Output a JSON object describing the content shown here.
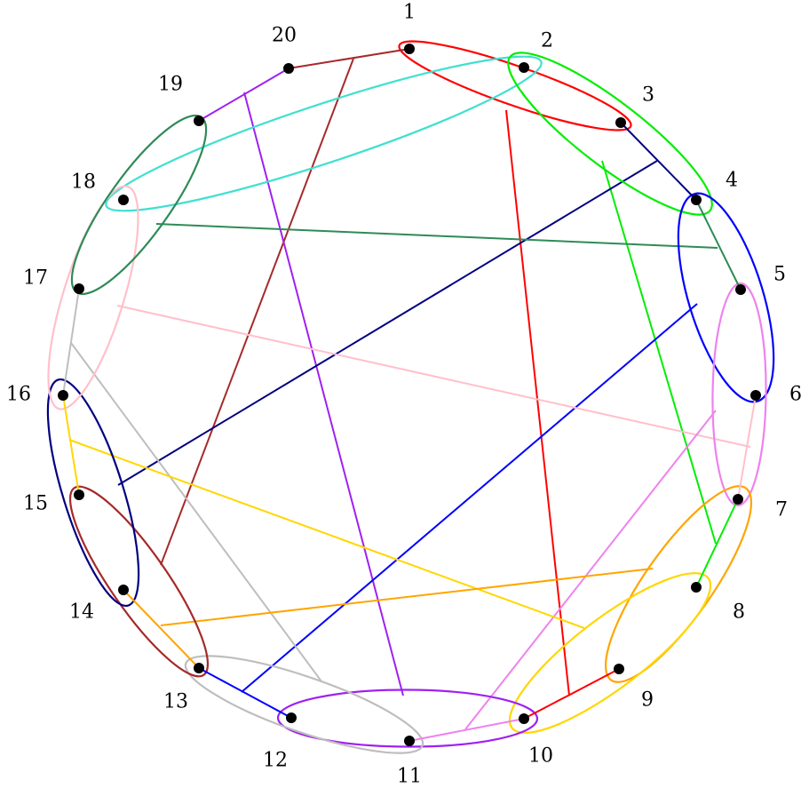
{
  "nodes": [
    {
      "id": 1,
      "label": "1"
    },
    {
      "id": 2,
      "label": "2"
    },
    {
      "id": 3,
      "label": "3"
    },
    {
      "id": 4,
      "label": "4"
    },
    {
      "id": 5,
      "label": "5"
    },
    {
      "id": 6,
      "label": "6"
    },
    {
      "id": 7,
      "label": "7"
    },
    {
      "id": 8,
      "label": "8"
    },
    {
      "id": 9,
      "label": "9"
    },
    {
      "id": 10,
      "label": "10"
    },
    {
      "id": 11,
      "label": "11"
    },
    {
      "id": 12,
      "label": "12"
    },
    {
      "id": 13,
      "label": "13"
    },
    {
      "id": 14,
      "label": "14"
    },
    {
      "id": 15,
      "label": "15"
    },
    {
      "id": 16,
      "label": "16"
    },
    {
      "id": 17,
      "label": "17"
    },
    {
      "id": 18,
      "label": "18"
    },
    {
      "id": 19,
      "label": "19"
    },
    {
      "id": 20,
      "label": "20"
    }
  ],
  "groups": [
    {
      "pair": [
        1,
        3
      ],
      "color": "#ff0000"
    },
    {
      "pair": [
        2,
        18
      ],
      "color": "#40e0d0"
    },
    {
      "pair": [
        2,
        4
      ],
      "color": "#00ee00"
    },
    {
      "pair": [
        4,
        6
      ],
      "color": "#0000ff"
    },
    {
      "pair": [
        5,
        7
      ],
      "color": "#ee82ee"
    },
    {
      "pair": [
        7,
        9
      ],
      "color": "#ffa500"
    },
    {
      "pair": [
        8,
        10
      ],
      "color": "#ffd700"
    },
    {
      "pair": [
        10,
        12
      ],
      "color": "#a020f0"
    },
    {
      "pair": [
        11,
        13
      ],
      "color": "#bebebe"
    },
    {
      "pair": [
        13,
        15
      ],
      "color": "#a52a2a"
    },
    {
      "pair": [
        14,
        16
      ],
      "color": "#000080"
    },
    {
      "pair": [
        16,
        18
      ],
      "color": "#ffc0cb"
    },
    {
      "pair": [
        17,
        19
      ],
      "color": "#2e8b57"
    }
  ],
  "edges": [
    {
      "from": 1,
      "to": 20,
      "color": "#a52a2a"
    },
    {
      "from": 19,
      "to": 20,
      "color": "#a020f0"
    },
    {
      "from": 3,
      "to": 4,
      "color": "#000080"
    },
    {
      "from": 4,
      "to": 5,
      "color": "#2e8b57"
    },
    {
      "from": 6,
      "to": 7,
      "color": "#ffc0cb"
    },
    {
      "from": 7,
      "to": 8,
      "color": "#00ee00"
    },
    {
      "from": 9,
      "to": 10,
      "color": "#ff0000"
    },
    {
      "from": 10,
      "to": 11,
      "color": "#ee82ee"
    },
    {
      "from": 12,
      "to": 13,
      "color": "#0000ff"
    },
    {
      "from": 13,
      "to": 14,
      "color": "#ffa500"
    },
    {
      "from": 15,
      "to": 16,
      "color": "#ffd700"
    },
    {
      "from": 16,
      "to": 17,
      "color": "#bebebe"
    }
  ]
}
